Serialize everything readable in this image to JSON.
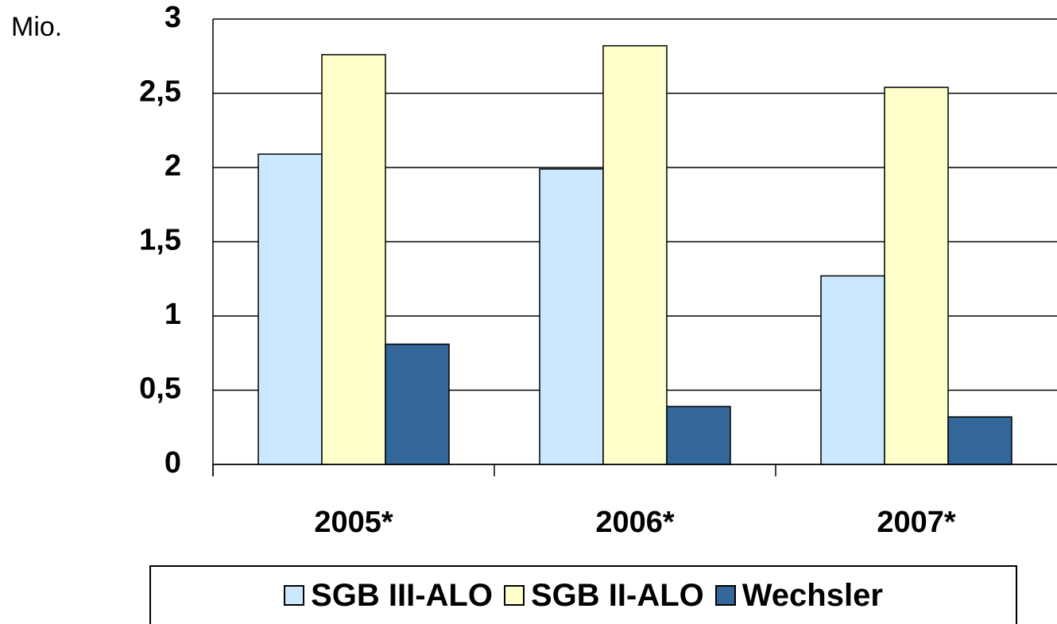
{
  "chart_data": {
    "type": "bar",
    "y_label": "Mio.",
    "categories": [
      "2005*",
      "2006*",
      "2007*"
    ],
    "series": [
      {
        "name": "SGB III-ALO",
        "color": "#cce8ff",
        "values": [
          2.09,
          1.99,
          1.27
        ]
      },
      {
        "name": "SGB II-ALO",
        "color": "#ffffcc",
        "values": [
          2.76,
          2.82,
          2.54
        ]
      },
      {
        "name": "Wechsler",
        "color": "#336699",
        "values": [
          0.81,
          0.39,
          0.32
        ]
      }
    ],
    "ylim": [
      0,
      3
    ],
    "yticks": [
      0,
      {
        "value": 0.5,
        "label": "0,5"
      },
      1,
      {
        "value": 1.5,
        "label": "1,5"
      },
      2,
      {
        "value": 2.5,
        "label": "2,5"
      },
      3
    ],
    "grid": true,
    "legend": "bottom"
  }
}
